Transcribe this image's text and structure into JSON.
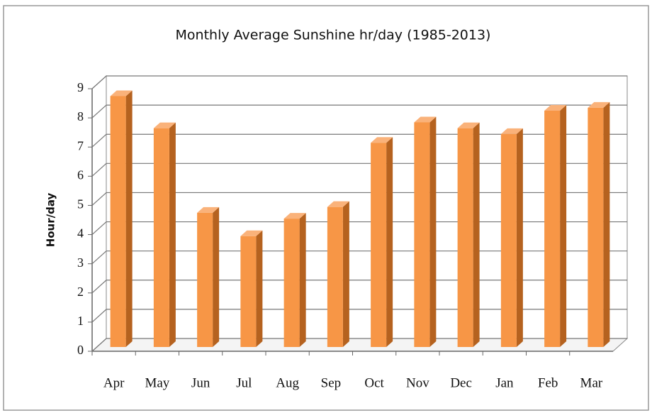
{
  "chart_data": {
    "type": "bar3d",
    "title": "Monthly Average Sunshine hr/day (1985-2013)",
    "y_label": "Hour/day",
    "categories": [
      "Apr",
      "May",
      "Jun",
      "Jul",
      "Aug",
      "Sep",
      "Oct",
      "Nov",
      "Dec",
      "Jan",
      "Feb",
      "Mar"
    ],
    "values": [
      8.6,
      7.5,
      4.6,
      3.8,
      4.4,
      4.8,
      7.0,
      7.7,
      7.5,
      7.3,
      8.1,
      8.2
    ],
    "color": "#f79646",
    "ylim": [
      0,
      9
    ],
    "yticks": [
      0,
      1,
      2,
      3,
      4,
      5,
      6,
      7,
      8,
      9
    ],
    "grid": true
  }
}
